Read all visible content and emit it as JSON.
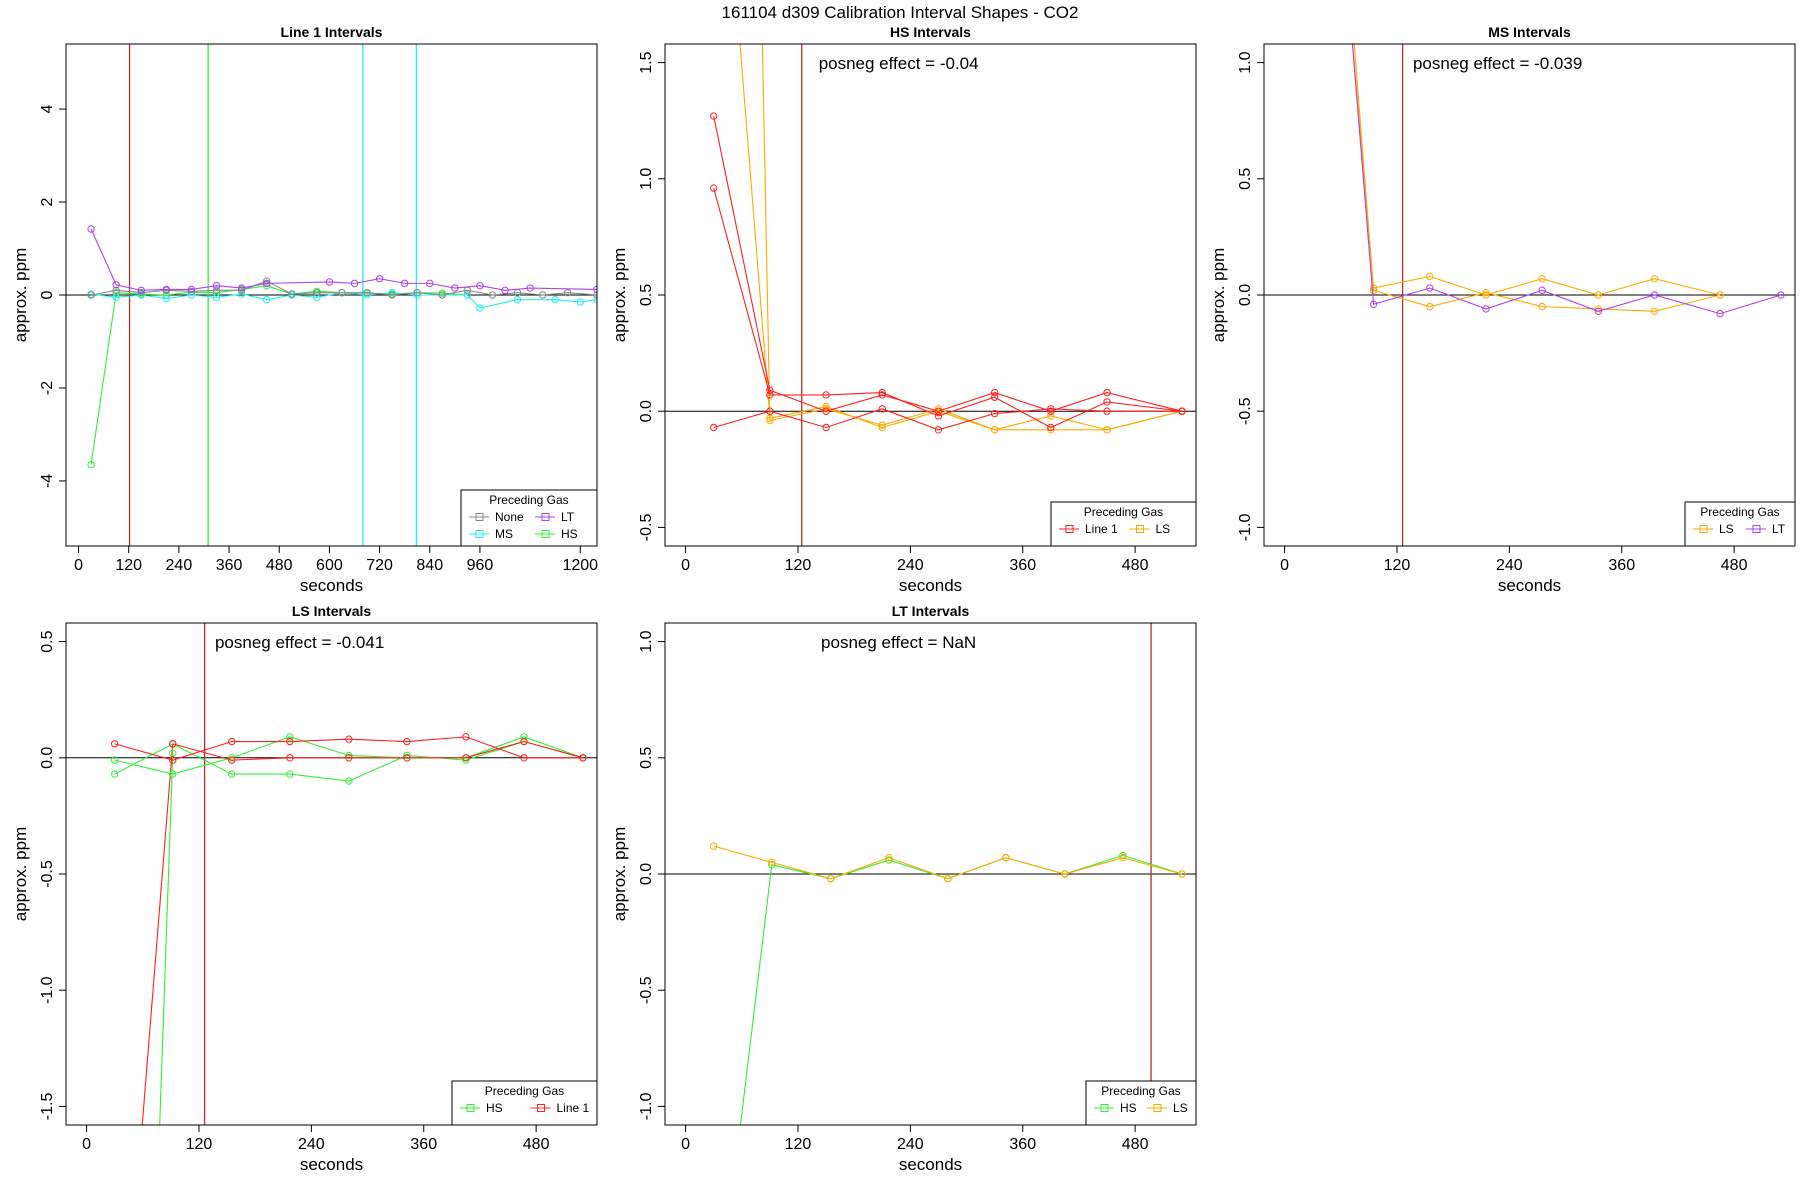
{
  "figure_title": "161104  d309   Calibration Interval Shapes - CO2",
  "colors": {
    "Line 1": "#ff2020",
    "HS": "#33ee33",
    "LS": "#ffaa00",
    "MS": "#22eeee",
    "LT": "#b040f0",
    "None": "#888888",
    "vline": "#b03030",
    "axis": "#000000"
  },
  "chart_data": [
    {
      "id": "line1",
      "type": "line",
      "title": "Line 1 Intervals",
      "xlabel": "seconds",
      "ylabel": "approx. ppm",
      "xlim": [
        -30,
        1240
      ],
      "ylim": [
        -5.4,
        5.4
      ],
      "xticks": [
        0,
        120,
        240,
        360,
        480,
        600,
        720,
        840,
        960,
        1200
      ],
      "xticklabels": [
        "0",
        "120",
        "240",
        "360",
        "480",
        "600",
        "720",
        "840",
        "960",
        "1200"
      ],
      "yticks": [
        -4,
        -2,
        0,
        2,
        4
      ],
      "yticklabels": [
        "-4",
        "-2",
        "0",
        "2",
        "4"
      ],
      "annotation": "",
      "vlines": [
        {
          "x": 122,
          "color": "vline"
        },
        {
          "x": 310,
          "color": "HS"
        },
        {
          "x": 680,
          "color": "MS"
        },
        {
          "x": 808,
          "color": "MS"
        }
      ],
      "legend": {
        "title": "Preceding Gas",
        "items": [
          "None",
          "LT",
          "MS",
          "HS"
        ],
        "cols": 2
      },
      "series": [
        {
          "name": "HS",
          "x": [
            30,
            90,
            150,
            210,
            270,
            330,
            390,
            450,
            510,
            570,
            630,
            690,
            750,
            810,
            870,
            930
          ],
          "y": [
            -3.65,
            0.05,
            0.02,
            0.0,
            0.06,
            0.05,
            0.12,
            0.2,
            0.02,
            0.08,
            0.05,
            0.04,
            0.02,
            0.05,
            0.04,
            0.0
          ]
        },
        {
          "name": "MS",
          "x": [
            30,
            90,
            150,
            210,
            270,
            330,
            390,
            450,
            510,
            570,
            630,
            690,
            750,
            810,
            870,
            930,
            960,
            1050,
            1140,
            1200,
            1240
          ],
          "y": [
            0.02,
            -0.05,
            0.0,
            -0.08,
            0.0,
            -0.05,
            0.02,
            -0.1,
            0.0,
            -0.05,
            0.05,
            0.0,
            0.05,
            0.0,
            0.0,
            0.0,
            -0.28,
            -0.1,
            -0.1,
            -0.15,
            -0.1
          ]
        },
        {
          "name": "None",
          "x": [
            30,
            90,
            150,
            210,
            270,
            330,
            390,
            450,
            510,
            570,
            630,
            690,
            750,
            810,
            870,
            930,
            990,
            1050,
            1110,
            1170,
            1240
          ],
          "y": [
            0.0,
            0.1,
            0.05,
            0.1,
            0.08,
            0.1,
            0.1,
            0.3,
            0.02,
            0.05,
            0.05,
            0.05,
            0.0,
            0.05,
            0.0,
            0.1,
            0.0,
            0.05,
            0.0,
            0.05,
            0.0
          ]
        },
        {
          "name": "LT",
          "x": [
            30,
            90,
            150,
            210,
            270,
            330,
            390,
            450,
            600,
            660,
            720,
            780,
            840,
            900,
            960,
            1020,
            1080,
            1240
          ],
          "y": [
            1.42,
            0.22,
            0.1,
            0.12,
            0.12,
            0.2,
            0.15,
            0.25,
            0.28,
            0.25,
            0.35,
            0.25,
            0.25,
            0.15,
            0.2,
            0.1,
            0.15,
            0.12
          ]
        }
      ]
    },
    {
      "id": "hs",
      "type": "line",
      "title": "HS Intervals",
      "xlabel": "seconds",
      "ylabel": "approx. ppm",
      "xlim": [
        -22,
        545
      ],
      "ylim": [
        -0.58,
        1.58
      ],
      "xticks": [
        0,
        120,
        240,
        360,
        480
      ],
      "xticklabels": [
        "0",
        "120",
        "240",
        "360",
        "480"
      ],
      "yticks": [
        -0.5,
        0.0,
        0.5,
        1.0,
        1.5
      ],
      "yticklabels": [
        "-0.5",
        "0.0",
        "0.5",
        "1.0",
        "1.5"
      ],
      "annotation": "posneg effect = -0.04",
      "vlines": [
        {
          "x": 124,
          "color": "vline"
        }
      ],
      "legend": {
        "title": "Preceding Gas",
        "items": [
          "Line 1",
          "LS"
        ],
        "cols": 2
      },
      "series": [
        {
          "name": "LS",
          "x": [
            30,
            90,
            150,
            210,
            270,
            330,
            390,
            450,
            530
          ],
          "y": [
            3.0,
            -0.03,
            0.02,
            -0.07,
            0.0,
            -0.08,
            -0.02,
            -0.08,
            0.0
          ]
        },
        {
          "name": "LS",
          "x": [
            75,
            90,
            150,
            210,
            270,
            330,
            390,
            450,
            530
          ],
          "y": [
            3.0,
            -0.04,
            0.01,
            -0.06,
            0.01,
            -0.08,
            -0.08,
            -0.08,
            0.0
          ]
        },
        {
          "name": "Line 1",
          "x": [
            30,
            90,
            150,
            210,
            270,
            330,
            390,
            450,
            530
          ],
          "y": [
            1.27,
            0.09,
            0.0,
            0.07,
            0.0,
            0.08,
            0.0,
            0.08,
            0.0
          ]
        },
        {
          "name": "Line 1",
          "x": [
            30,
            90,
            150,
            210,
            270,
            330,
            390,
            450,
            530
          ],
          "y": [
            0.96,
            0.07,
            0.07,
            0.08,
            -0.02,
            0.06,
            -0.07,
            0.04,
            0.0
          ]
        },
        {
          "name": "Line 1",
          "x": [
            30,
            90,
            150,
            210,
            270,
            330,
            390,
            450,
            530
          ],
          "y": [
            -0.07,
            0.0,
            -0.07,
            0.01,
            -0.08,
            -0.01,
            0.01,
            0.0,
            0.0
          ]
        }
      ]
    },
    {
      "id": "ms",
      "type": "line",
      "title": "MS Intervals",
      "xlabel": "seconds",
      "ylabel": "approx. ppm",
      "xlim": [
        -22,
        545
      ],
      "ylim": [
        -1.08,
        1.08
      ],
      "xticks": [
        0,
        120,
        240,
        360,
        480
      ],
      "xticklabels": [
        "0",
        "120",
        "240",
        "360",
        "480"
      ],
      "yticks": [
        -1.0,
        -0.5,
        0.0,
        0.5,
        1.0
      ],
      "yticklabels": [
        "-1.0",
        "-0.5",
        "0.0",
        "0.5",
        "1.0"
      ],
      "annotation": "posneg effect = -0.039",
      "vlines": [
        {
          "x": 126,
          "color": "vline"
        }
      ],
      "legend": {
        "title": "Preceding Gas",
        "items": [
          "LS",
          "LT"
        ],
        "cols": 2
      },
      "series": [
        {
          "name": "LS",
          "x": [
            72,
            95,
            155,
            215,
            275,
            335,
            395,
            465
          ],
          "y": [
            1.2,
            0.02,
            -0.05,
            0.01,
            -0.05,
            -0.06,
            -0.07,
            0.0
          ]
        },
        {
          "name": "LS",
          "x": [
            70,
            95,
            155,
            215,
            275,
            335,
            395,
            465
          ],
          "y": [
            1.2,
            0.03,
            0.08,
            0.0,
            0.07,
            0.0,
            0.07,
            0.0
          ]
        },
        {
          "name": "LT",
          "x": [
            70,
            95,
            155,
            215,
            275,
            335,
            395,
            465,
            530
          ],
          "y": [
            1.2,
            -0.04,
            0.03,
            -0.06,
            0.02,
            -0.07,
            0.0,
            -0.08,
            0.0
          ]
        }
      ]
    },
    {
      "id": "ls",
      "type": "line",
      "title": "LS Intervals",
      "xlabel": "seconds",
      "ylabel": "approx. ppm",
      "xlim": [
        -22,
        545
      ],
      "ylim": [
        -1.58,
        0.58
      ],
      "xticks": [
        0,
        120,
        240,
        360,
        480
      ],
      "xticklabels": [
        "0",
        "120",
        "240",
        "360",
        "480"
      ],
      "yticks": [
        -1.5,
        -1.0,
        -0.5,
        0.0,
        0.5
      ],
      "yticklabels": [
        "-1.5",
        "-1.0",
        "-0.5",
        "0.0",
        "0.5"
      ],
      "annotation": "posneg effect = -0.041",
      "vlines": [
        {
          "x": 126,
          "color": "vline"
        }
      ],
      "legend": {
        "title": "Preceding Gas",
        "items": [
          "HS",
          "Line 1"
        ],
        "cols": 2
      },
      "series": [
        {
          "name": "Line 1",
          "x": [
            57,
            92
          ],
          "y": [
            -1.7,
            0.06
          ]
        },
        {
          "name": "HS",
          "x": [
            77,
            92
          ],
          "y": [
            -1.7,
            0.02
          ]
        },
        {
          "name": "HS",
          "x": [
            30,
            92,
            155,
            217,
            280,
            342,
            405,
            467,
            530
          ],
          "y": [
            -0.01,
            -0.07,
            0.0,
            0.09,
            0.01,
            0.0,
            0.0,
            0.09,
            0.0
          ]
        },
        {
          "name": "HS",
          "x": [
            30,
            92,
            155,
            217,
            280,
            342,
            405,
            467,
            530
          ],
          "y": [
            -0.07,
            0.06,
            -0.07,
            -0.07,
            -0.1,
            0.01,
            -0.01,
            0.07,
            0.0
          ]
        },
        {
          "name": "Line 1",
          "x": [
            30,
            92,
            155,
            217,
            280,
            342,
            405,
            467,
            530
          ],
          "y": [
            0.06,
            -0.01,
            0.07,
            0.07,
            0.08,
            0.07,
            0.09,
            0.0,
            0.0
          ]
        },
        {
          "name": "Line 1",
          "x": [
            92,
            155,
            217,
            280,
            342,
            405,
            467,
            530
          ],
          "y": [
            0.06,
            -0.01,
            0.0,
            0.0,
            0.0,
            0.0,
            0.07,
            0.0
          ]
        }
      ]
    },
    {
      "id": "lt",
      "type": "line",
      "title": "LT Intervals",
      "xlabel": "seconds",
      "ylabel": "approx. ppm",
      "xlim": [
        -22,
        545
      ],
      "ylim": [
        -1.08,
        1.08
      ],
      "xticks": [
        0,
        120,
        240,
        360,
        480
      ],
      "xticklabels": [
        "0",
        "120",
        "240",
        "360",
        "480"
      ],
      "yticks": [
        -1.0,
        -0.5,
        0.0,
        0.5,
        1.0
      ],
      "yticklabels": [
        "-1.0",
        "-0.5",
        "0.0",
        "0.5",
        "1.0"
      ],
      "annotation": "posneg effect = NaN",
      "vlines": [
        {
          "x": 497,
          "color": "vline"
        }
      ],
      "legend": {
        "title": "Preceding Gas",
        "items": [
          "HS",
          "LS"
        ],
        "cols": 2
      },
      "series": [
        {
          "name": "HS",
          "x": [
            58,
            92,
            155,
            217,
            280,
            342,
            405,
            467,
            530
          ],
          "y": [
            -1.1,
            0.04,
            -0.02,
            0.06,
            -0.02,
            0.07,
            0.0,
            0.08,
            0.0
          ]
        },
        {
          "name": "LS",
          "x": [
            30,
            92,
            155,
            217,
            280,
            342,
            405,
            467,
            530
          ],
          "y": [
            0.12,
            0.05,
            -0.02,
            0.07,
            -0.02,
            0.07,
            0.0,
            0.07,
            0.0
          ]
        }
      ]
    }
  ]
}
